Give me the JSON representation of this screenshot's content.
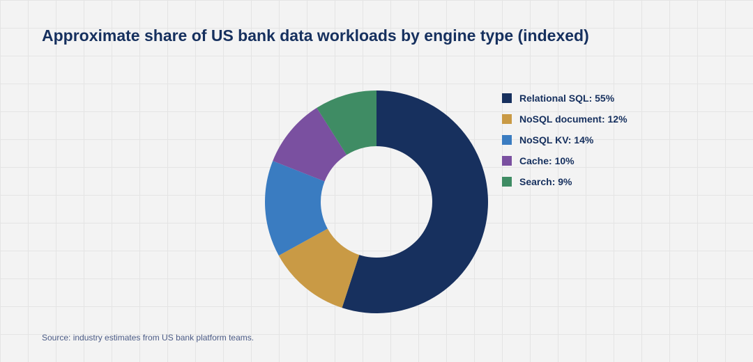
{
  "title": "Approximate share of US bank data workloads by engine type (indexed)",
  "source": "Source: industry estimates from US bank platform teams.",
  "chart_data": {
    "type": "pie",
    "subtype": "donut",
    "title": "Approximate share of US bank data workloads by engine type (indexed)",
    "categories": [
      "Relational SQL",
      "NoSQL document",
      "NoSQL KV",
      "Cache",
      "Search"
    ],
    "values": [
      55,
      12,
      14,
      10,
      9
    ],
    "unit": "%",
    "colors": [
      "#17305e",
      "#c99a45",
      "#3a7cc1",
      "#7a50a0",
      "#3f8c64"
    ],
    "legend": {
      "position": "right",
      "entries": [
        "Relational SQL: 55%",
        "NoSQL document: 12%",
        "NoSQL KV: 14%",
        "Cache: 10%",
        "Search: 9%"
      ]
    }
  }
}
